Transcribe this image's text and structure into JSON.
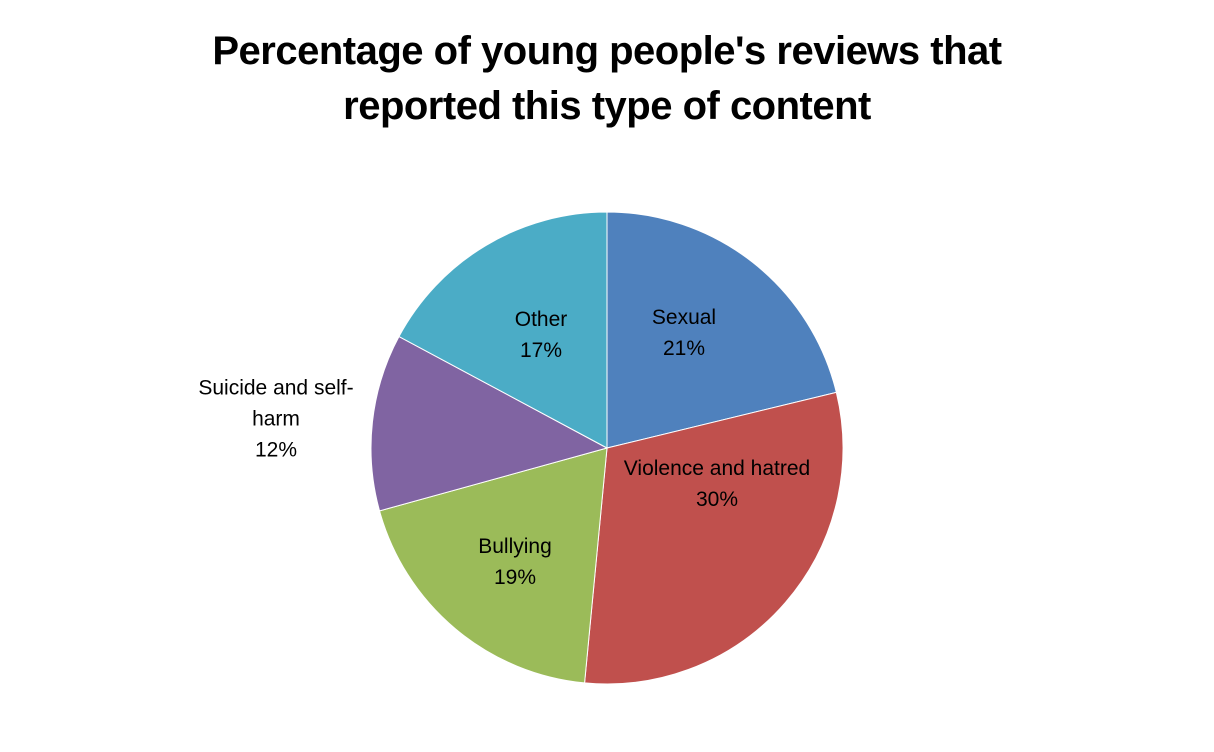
{
  "chart_data": {
    "type": "pie",
    "title_lines": [
      "Percentage of young people's reviews that",
      "reported this type of content"
    ],
    "start_angle_deg": 0,
    "direction": "clockwise",
    "legend": "none",
    "slices": [
      {
        "label_lines": [
          "Sexual"
        ],
        "value": 21,
        "value_label": "21%",
        "color": "#4F81BD"
      },
      {
        "label_lines": [
          "Violence and hatred"
        ],
        "value": 30,
        "value_label": "30%",
        "color": "#C0504D"
      },
      {
        "label_lines": [
          "Bullying"
        ],
        "value": 19,
        "value_label": "19%",
        "color": "#9BBB59"
      },
      {
        "label_lines": [
          "Suicide and self-",
          "harm"
        ],
        "value": 12,
        "value_label": "12%",
        "color": "#8064A2"
      },
      {
        "label_lines": [
          "Other"
        ],
        "value": 17,
        "value_label": "17%",
        "color": "#4BACC6"
      }
    ]
  }
}
